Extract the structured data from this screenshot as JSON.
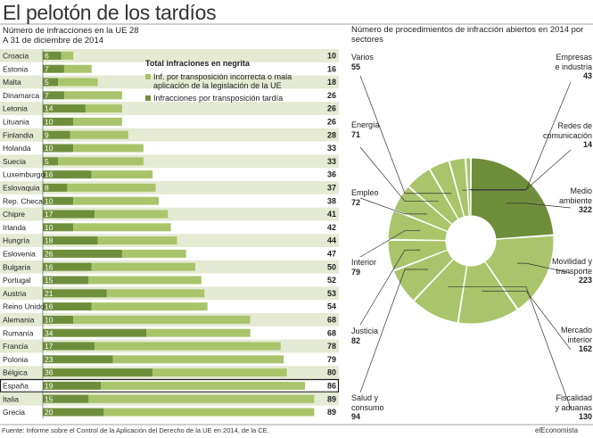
{
  "header": {
    "title": "El pelotón de los tardíos",
    "subtitle": "Número de infracciones en la UE 28",
    "date": "A 31 de diciembre de 2014"
  },
  "legend": {
    "title": "Total infraciones en negrita",
    "item1": "Inf. por transposición incorrecta o mala aplicación de la legislación de la UE",
    "item2": "Infracciones por transposición tardía"
  },
  "colors": {
    "light": "#a9c46a",
    "dark": "#6f8e3b",
    "stripe": "#e4ead3",
    "highlight": "#1a1a1a"
  },
  "chart_data": [
    {
      "type": "bar",
      "title": "Número de infracciones en la UE 28",
      "highlight": "España",
      "series": [
        {
          "name": "Infracciones por transposición tardía",
          "values": [
            6,
            7,
            5,
            7,
            14,
            10,
            9,
            10,
            5,
            16,
            8,
            10,
            17,
            10,
            18,
            26,
            16,
            15,
            21,
            16,
            10,
            34,
            17,
            23,
            36,
            19,
            15,
            20
          ]
        },
        {
          "name": "Inf. por transposición incorrecta o mala aplicación de la legislación de la UE",
          "values": [
            4,
            9,
            13,
            19,
            12,
            16,
            19,
            23,
            28,
            20,
            29,
            28,
            24,
            32,
            26,
            21,
            34,
            37,
            32,
            38,
            58,
            34,
            61,
            56,
            44,
            67,
            74,
            69
          ]
        }
      ],
      "categories": [
        "Croacia",
        "Estonia",
        "Malta",
        "Dinamarca",
        "Letonia",
        "Lituania",
        "Finlandia",
        "Holanda",
        "Suecia",
        "Luxemburgo",
        "Eslovaquia",
        "Rep. Checa",
        "Chipre",
        "Irlanda",
        "Hungría",
        "Eslovenia",
        "Bulgaria",
        "Portugal",
        "Austria",
        "Reino Unido",
        "Alemania",
        "Rumanía",
        "Francia",
        "Polonia",
        "Bélgica",
        "España",
        "Italia",
        "Grecia"
      ],
      "totals": [
        10,
        16,
        18,
        26,
        26,
        26,
        28,
        33,
        33,
        36,
        37,
        38,
        41,
        42,
        44,
        47,
        50,
        52,
        53,
        54,
        68,
        68,
        78,
        79,
        80,
        86,
        89,
        89
      ]
    },
    {
      "type": "pie",
      "title": "Número de procedimientos de infracción abiertos en 2014 por sectores",
      "categories": [
        "Medio ambiente",
        "Movilidad y transporte",
        "Mercado interior",
        "Fiscalidad y aduanas",
        "Salud y consumo",
        "Justicia",
        "Interior",
        "Empleo",
        "Energía",
        "Varios",
        "Empresas e industria",
        "Redes de comunicación"
      ],
      "values": [
        322,
        223,
        162,
        130,
        94,
        82,
        79,
        72,
        71,
        55,
        43,
        14
      ],
      "labels": [
        [
          "Medio",
          "ambiente"
        ],
        [
          "Movilidad y",
          "transporte"
        ],
        [
          "Mercado",
          "interior"
        ],
        [
          "Fiscalidad",
          "y aduanas"
        ],
        [
          "Salud y",
          "consumo"
        ],
        [
          "Justicia"
        ],
        [
          "Interior"
        ],
        [
          "Empleo"
        ],
        [
          "Energía"
        ],
        [
          "Varios"
        ],
        [
          "Empresas",
          "e industria"
        ],
        [
          "Redes de",
          "comunicación"
        ]
      ]
    }
  ]
}
